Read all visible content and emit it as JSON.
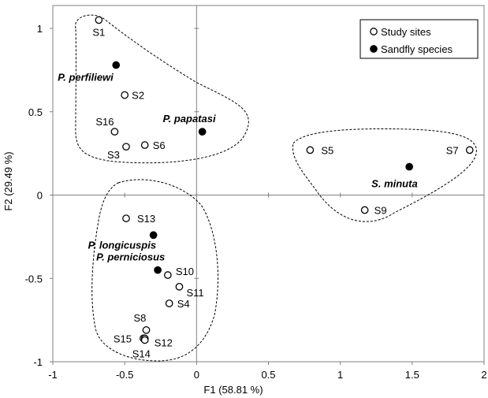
{
  "chart_data": {
    "type": "scatter",
    "title": "",
    "xlabel": "F1 (58.81 %)",
    "ylabel": "F2 (29.49 %)",
    "xlim": [
      -1,
      2
    ],
    "ylim": [
      -1,
      1
    ],
    "xticks": [
      -1,
      -0.5,
      0,
      0.5,
      1,
      1.5,
      2
    ],
    "yticks": [
      -1,
      -0.5,
      0,
      0.5,
      1
    ],
    "xtick_labels": [
      "-1",
      "-0.5",
      "0",
      "0.5",
      "1",
      "1.5",
      "2"
    ],
    "ytick_labels": [
      "-1",
      "-0.5",
      "0",
      "0.5",
      "1"
    ],
    "grid": false,
    "legend_position": "top-right",
    "series": [
      {
        "name": "Study sites",
        "marker": "open-circle",
        "points": [
          {
            "label": "S1",
            "x": -0.68,
            "y": 1.05
          },
          {
            "label": "S2",
            "x": -0.5,
            "y": 0.6
          },
          {
            "label": "S16",
            "x": -0.57,
            "y": 0.38
          },
          {
            "label": "S3",
            "x": -0.49,
            "y": 0.29
          },
          {
            "label": "S6",
            "x": -0.36,
            "y": 0.3
          },
          {
            "label": "S5",
            "x": 0.79,
            "y": 0.27
          },
          {
            "label": "S7",
            "x": 1.9,
            "y": 0.27
          },
          {
            "label": "S9",
            "x": 1.17,
            "y": -0.09
          },
          {
            "label": "S13",
            "x": -0.49,
            "y": -0.14
          },
          {
            "label": "S10",
            "x": -0.2,
            "y": -0.48
          },
          {
            "label": "S11",
            "x": -0.12,
            "y": -0.55
          },
          {
            "label": "S4",
            "x": -0.19,
            "y": -0.65
          },
          {
            "label": "S8",
            "x": -0.35,
            "y": -0.81
          },
          {
            "label": "S15",
            "x": -0.37,
            "y": -0.86
          },
          {
            "label": "S12",
            "x": -0.36,
            "y": -0.86
          },
          {
            "label": "S14",
            "x": -0.36,
            "y": -0.87
          }
        ]
      },
      {
        "name": "Sandfly species",
        "marker": "filled-circle",
        "points": [
          {
            "label": "P. perfiliewi",
            "x": -0.56,
            "y": 0.78
          },
          {
            "label": "P. papatasi",
            "x": 0.04,
            "y": 0.38
          },
          {
            "label": "S. minuta",
            "x": 1.48,
            "y": 0.17
          },
          {
            "label": "P. longicuspis",
            "x": -0.3,
            "y": -0.24
          },
          {
            "label": "P. perniciosus",
            "x": -0.27,
            "y": -0.45
          }
        ]
      }
    ],
    "colors": {
      "marker": "#000000",
      "background": "#ffffff"
    }
  }
}
